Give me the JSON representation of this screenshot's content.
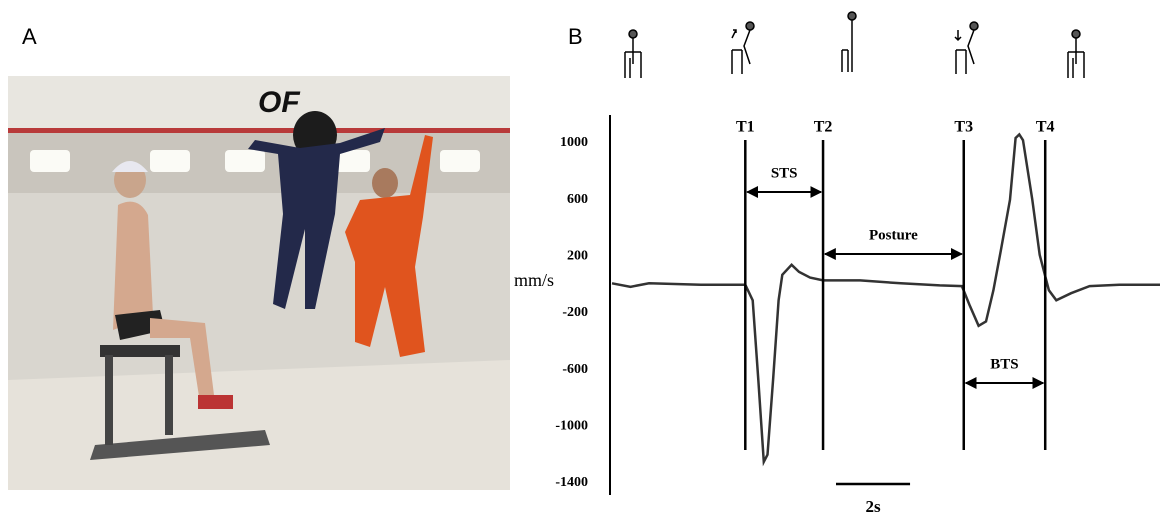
{
  "panel_labels": [
    "A",
    "B"
  ],
  "chart_data": {
    "type": "line",
    "y_label": "mm/s",
    "x": [
      0,
      0.5,
      1.0,
      2.4,
      3.6,
      3.8,
      3.95,
      4.1,
      4.2,
      4.35,
      4.5,
      4.6,
      4.85,
      5.05,
      5.35,
      5.7,
      6.7,
      7.8,
      8.85,
      9.45,
      9.65,
      9.9,
      10.1,
      10.3,
      10.5,
      10.75,
      10.9,
      11.0,
      11.1,
      11.35,
      11.55,
      11.8,
      12.0,
      12.4,
      12.9,
      13.7,
      14.8
    ],
    "values": [
      10,
      -15,
      10,
      0,
      0,
      -110,
      -670,
      -1250,
      -1200,
      -670,
      -110,
      70,
      140,
      90,
      50,
      30,
      30,
      10,
      -5,
      -10,
      -140,
      -290,
      -260,
      -40,
      240,
      600,
      1035,
      1060,
      1020,
      600,
      210,
      -40,
      -110,
      -60,
      -10,
      0,
      0
    ],
    "color": "#333333",
    "xlim": [
      0,
      14.8
    ],
    "ylim": [
      -1400,
      1000
    ],
    "yticks": [
      1000,
      600,
      200,
      -200,
      -600,
      -1000,
      -1400
    ],
    "events": [
      {
        "label": "T1",
        "x": 3.6
      },
      {
        "label": "T2",
        "x": 5.7
      },
      {
        "label": "T3",
        "x": 9.5
      },
      {
        "label": "T4",
        "x": 11.7
      }
    ],
    "spans": [
      "STS",
      "Posture",
      "BTS"
    ],
    "scale_bar": {
      "value": 2,
      "label": "2s"
    }
  }
}
